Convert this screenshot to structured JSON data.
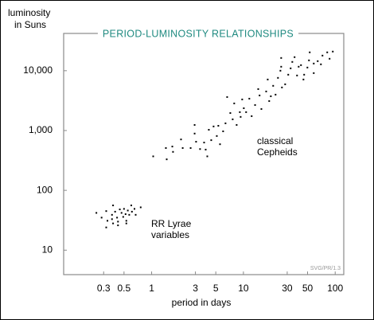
{
  "chart_data": {
    "type": "scatter",
    "title": "PERIOD-LUMINOSITY RELATIONSHIPS",
    "y_label": [
      "luminosity",
      "in Suns"
    ],
    "x_label": "period in days",
    "annotations": [
      [
        "classical",
        "Cepheids"
      ],
      [
        "RR Lyrae",
        "variables"
      ]
    ],
    "credit": "SVG/PR/1.3",
    "xscale": "log",
    "yscale": "log",
    "xlim": [
      0.11,
      124
    ],
    "ylim": [
      3.9,
      42000
    ],
    "xticks": [
      0.3,
      0.5,
      1,
      3,
      5,
      10,
      30,
      50,
      100
    ],
    "yticks": [
      10,
      100,
      {
        "value": 1000,
        "label": "1,000"
      },
      {
        "value": 10000,
        "label": "10,000"
      }
    ],
    "series": [
      {
        "color": "#000000",
        "x": [
          1.04,
          1.43,
          1.46,
          1.68,
          1.71,
          2.09,
          2.18,
          2.66,
          2.94,
          2.94,
          3.05,
          3.37,
          3.73,
          3.88,
          4.04,
          4.2,
          4.46,
          4.73,
          5.13,
          5.33,
          5.56,
          6.01,
          6.38,
          6.65,
          7.2,
          7.64,
          7.94,
          8.44,
          9.14,
          9.33,
          9.7,
          10.1,
          10.7,
          11.6,
          12.3,
          13.4,
          14.5,
          15,
          15.7,
          17.7,
          18.4,
          19.1,
          19.9,
          21.1,
          22.4,
          23.8,
          25.3,
          25.8,
          25.8,
          26.3,
          28.5,
          30.8,
          32.7,
          34.1,
          36.1,
          38.4,
          40,
          42.4,
          45.1,
          45.9,
          49.8,
          51.8,
          52.8,
          58.4,
          58.4,
          64.5,
          69.9,
          72.7,
          81.9,
          86.9,
          94.2
        ],
        "y": [
          370,
          510,
          330,
          540,
          440,
          710,
          510,
          510,
          890,
          1240,
          650,
          490,
          630,
          480,
          370,
          1030,
          690,
          1170,
          810,
          1200,
          590,
          970,
          1320,
          3630,
          1960,
          1540,
          2840,
          1240,
          2030,
          1690,
          3310,
          2360,
          2030,
          3410,
          1740,
          2670,
          4930,
          3860,
          2290,
          4500,
          7130,
          3110,
          3740,
          5590,
          3980,
          7590,
          10000,
          16330,
          11660,
          5250,
          5930,
          8580,
          10960,
          14030,
          16860,
          8320,
          11660,
          12390,
          7130,
          8580,
          11300,
          14900,
          20280,
          13180,
          9120,
          14450,
          12790,
          17900,
          20280,
          15850,
          20890
        ]
      },
      {
        "color": "#000000",
        "x": [
          0.25,
          0.285,
          0.32,
          0.33,
          0.32,
          0.37,
          0.38,
          0.4,
          0.42,
          0.43,
          0.45,
          0.47,
          0.49,
          0.5,
          0.52,
          0.53,
          0.55,
          0.57,
          0.6,
          0.61,
          0.65,
          0.67,
          0.76,
          0.43,
          0.37,
          0.38,
          0.53
        ],
        "y": [
          42,
          35,
          45,
          31,
          24,
          39,
          56,
          44,
          35,
          26,
          48,
          42,
          36,
          49,
          40,
          31,
          46,
          39,
          56,
          44,
          49,
          39,
          52,
          30,
          33,
          28,
          28
        ]
      }
    ]
  }
}
